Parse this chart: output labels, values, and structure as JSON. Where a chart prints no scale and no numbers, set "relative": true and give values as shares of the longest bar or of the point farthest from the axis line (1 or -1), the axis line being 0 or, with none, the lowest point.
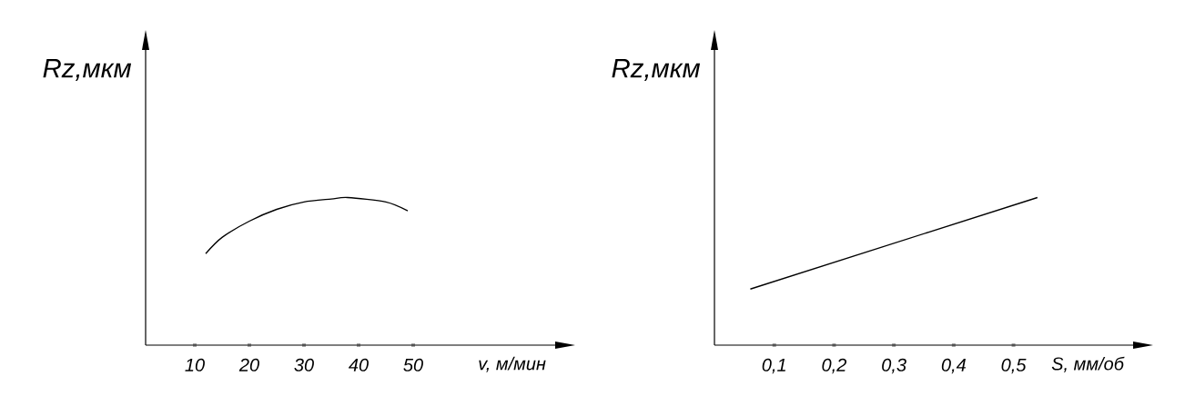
{
  "chart_data": [
    {
      "type": "line",
      "relative": true,
      "xlabel": "v, м/мин",
      "ylabel": "Rz,мкм",
      "color": "#000000",
      "xlim": [
        1,
        76
      ],
      "xticks": [
        10,
        20,
        30,
        40,
        50
      ],
      "x": [
        12,
        15,
        20,
        25,
        30,
        35,
        38,
        45,
        49
      ],
      "values": [
        0.62,
        0.73,
        0.84,
        0.92,
        0.97,
        0.99,
        1,
        0.97,
        0.91
      ]
    },
    {
      "type": "line",
      "relative": true,
      "xlabel": "S, мм/об",
      "ylabel": "Rz,мкм",
      "color": "#000000",
      "xlim": [
        0,
        0.7
      ],
      "xticks": [
        {
          "value": 0.1,
          "label": "0,1"
        },
        {
          "value": 0.2,
          "label": "0,2"
        },
        {
          "value": 0.3,
          "label": "0,3"
        },
        {
          "value": 0.4,
          "label": "0,4"
        },
        {
          "value": 0.5,
          "label": "0,5"
        }
      ],
      "x": [
        0.06,
        0.54
      ],
      "values": [
        0.38,
        1
      ]
    }
  ]
}
